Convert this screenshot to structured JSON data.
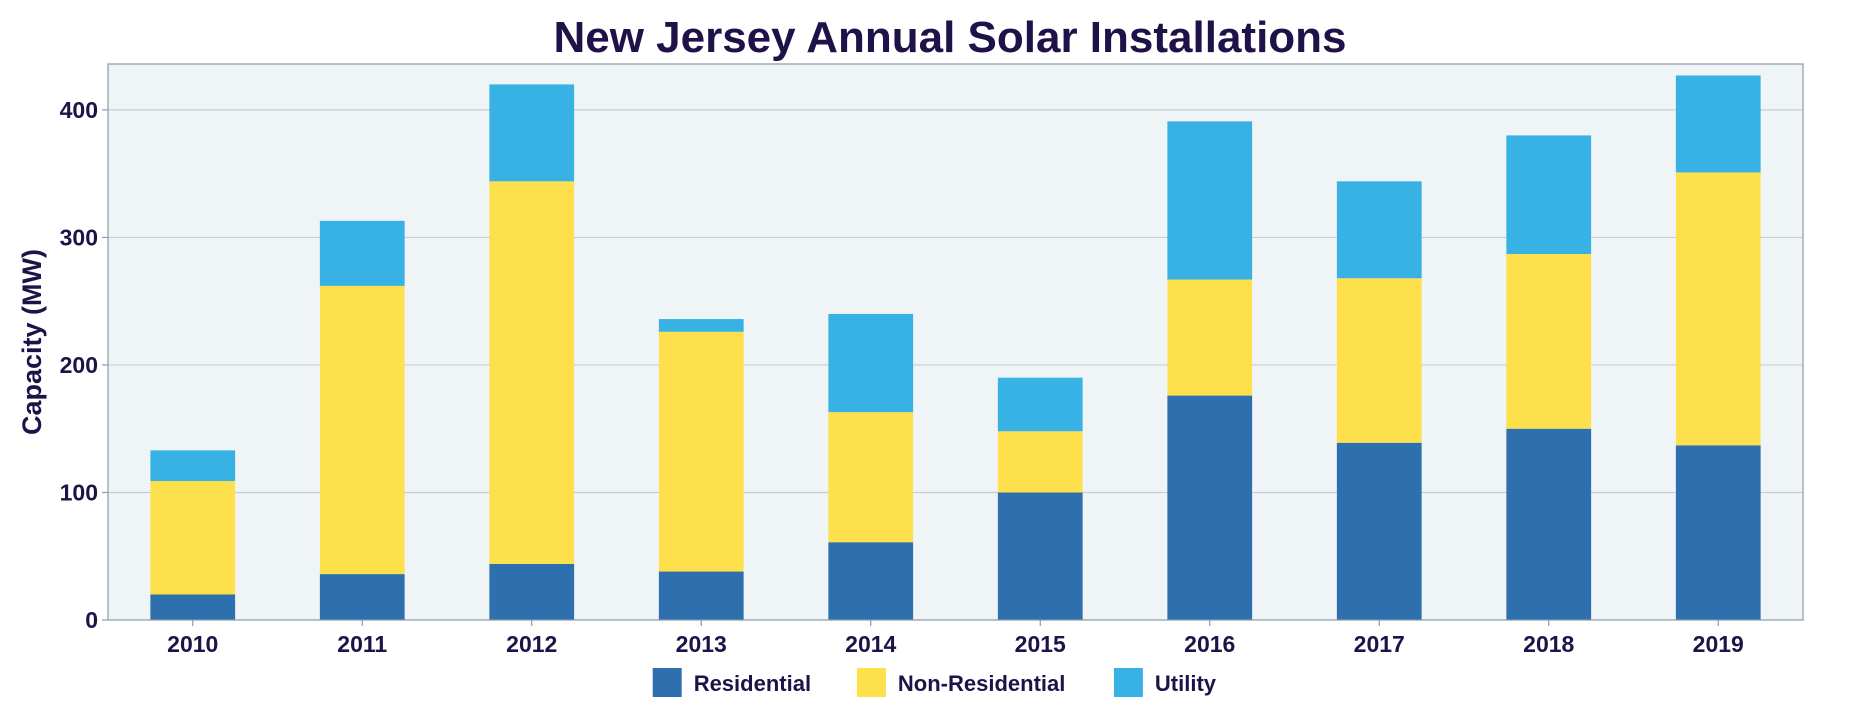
{
  "chart_data": {
    "type": "bar",
    "stacked": true,
    "title": "New Jersey Annual Solar Installations",
    "xlabel": "",
    "ylabel": "Capacity (MW)",
    "categories": [
      "2010",
      "2011",
      "2012",
      "2013",
      "2014",
      "2015",
      "2016",
      "2017",
      "2018",
      "2019"
    ],
    "series": [
      {
        "name": "Residential",
        "color": "#2e70ae",
        "values": [
          20,
          36,
          44,
          38,
          61,
          100,
          176,
          139,
          150,
          137
        ]
      },
      {
        "name": "Non-Residential",
        "color": "#fee04c",
        "values": [
          89,
          226,
          300,
          188,
          102,
          48,
          91,
          129,
          137,
          214
        ]
      },
      {
        "name": "Utility",
        "color": "#38b2e5",
        "values": [
          24,
          51,
          76,
          10,
          77,
          42,
          124,
          76,
          93,
          76
        ]
      }
    ],
    "ylim": [
      0,
      436
    ],
    "yticks": [
      0,
      100,
      200,
      300,
      400
    ],
    "grid": true,
    "legend_position": "bottom",
    "colors": {
      "text": "#1e1248",
      "plot_background": "#eff5f6",
      "grid": "#c9cdd3",
      "frame": "#8a9aab"
    }
  }
}
